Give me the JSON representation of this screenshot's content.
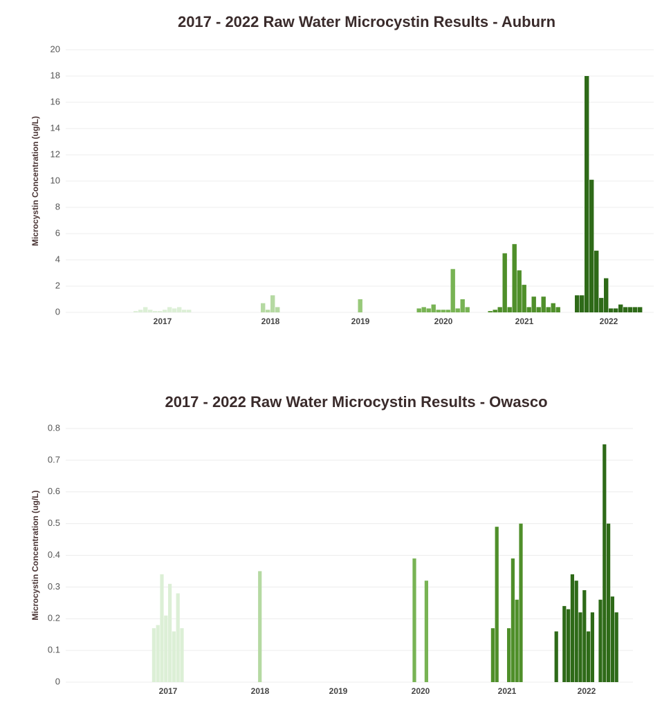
{
  "chart_data": [
    {
      "type": "bar",
      "title": "2017 - 2022 Raw Water Microcystin Results - Auburn",
      "y_label": "Microcystin Concentration (ug/L)",
      "ylim": [
        0,
        20
      ],
      "yticks": [
        0,
        2,
        4,
        6,
        8,
        10,
        12,
        14,
        16,
        18,
        20
      ],
      "grid": true,
      "groups": [
        {
          "label": "2017",
          "color": "#dcefd6",
          "values": [
            0.1,
            0.2,
            0.4,
            0.2,
            0.1,
            0.1,
            0.2,
            0.4,
            0.3,
            0.4,
            0.2,
            0.2
          ]
        },
        {
          "label": "2018",
          "color": "#b5d9a2",
          "values": [
            0.7,
            0.2,
            1.3,
            0.4
          ]
        },
        {
          "label": "2019",
          "color": "#98c97a",
          "values": [
            1.0
          ]
        },
        {
          "label": "2020",
          "color": "#78b354",
          "values": [
            0.3,
            0.4,
            0.3,
            0.6,
            0.2,
            0.2,
            0.2,
            3.3,
            0.3,
            1.0,
            0.4
          ]
        },
        {
          "label": "2021",
          "color": "#4f8f2a",
          "values": [
            0.1,
            0.2,
            0.4,
            4.5,
            0.4,
            5.2,
            3.2,
            2.1,
            0.4,
            1.2,
            0.4,
            1.2,
            0.4,
            0.7,
            0.4
          ]
        },
        {
          "label": "2022",
          "color": "#2e6a18",
          "values": [
            1.3,
            1.3,
            18.0,
            10.1,
            4.7,
            1.1,
            2.6,
            0.3,
            0.3,
            0.6,
            0.4,
            0.4,
            0.4,
            0.4
          ]
        }
      ]
    },
    {
      "type": "bar",
      "title": "2017 - 2022 Raw Water Microcystin Results - Owasco",
      "y_label": "Microcystin Concentration (ug/L)",
      "ylim": [
        0,
        0.8
      ],
      "yticks": [
        0,
        0.1,
        0.2,
        0.3,
        0.4,
        0.5,
        0.6,
        0.7,
        0.8
      ],
      "grid": true,
      "groups": [
        {
          "label": "2017",
          "color": "#dcefd6",
          "values": [
            0.17,
            0.18,
            0.34,
            0.21,
            0.31,
            0.16,
            0.28,
            0.17
          ]
        },
        {
          "label": "2018",
          "color": "#b5d9a2",
          "values": [
            0.35
          ]
        },
        {
          "label": "2019",
          "color": "#98c97a",
          "values": []
        },
        {
          "label": "2020",
          "color": "#78b354",
          "values": [
            0.39,
            0,
            0,
            0.32
          ]
        },
        {
          "label": "2021",
          "color": "#4f8f2a",
          "values": [
            0.17,
            0.49,
            0,
            0,
            0.17,
            0.39,
            0.26,
            0.5
          ]
        },
        {
          "label": "2022",
          "color": "#2e6a18",
          "values": [
            0.16,
            0,
            0.24,
            0.23,
            0.34,
            0.32,
            0.22,
            0.29,
            0.16,
            0.22,
            0,
            0.26,
            0.75,
            0.5,
            0.27,
            0.22
          ]
        }
      ]
    }
  ]
}
